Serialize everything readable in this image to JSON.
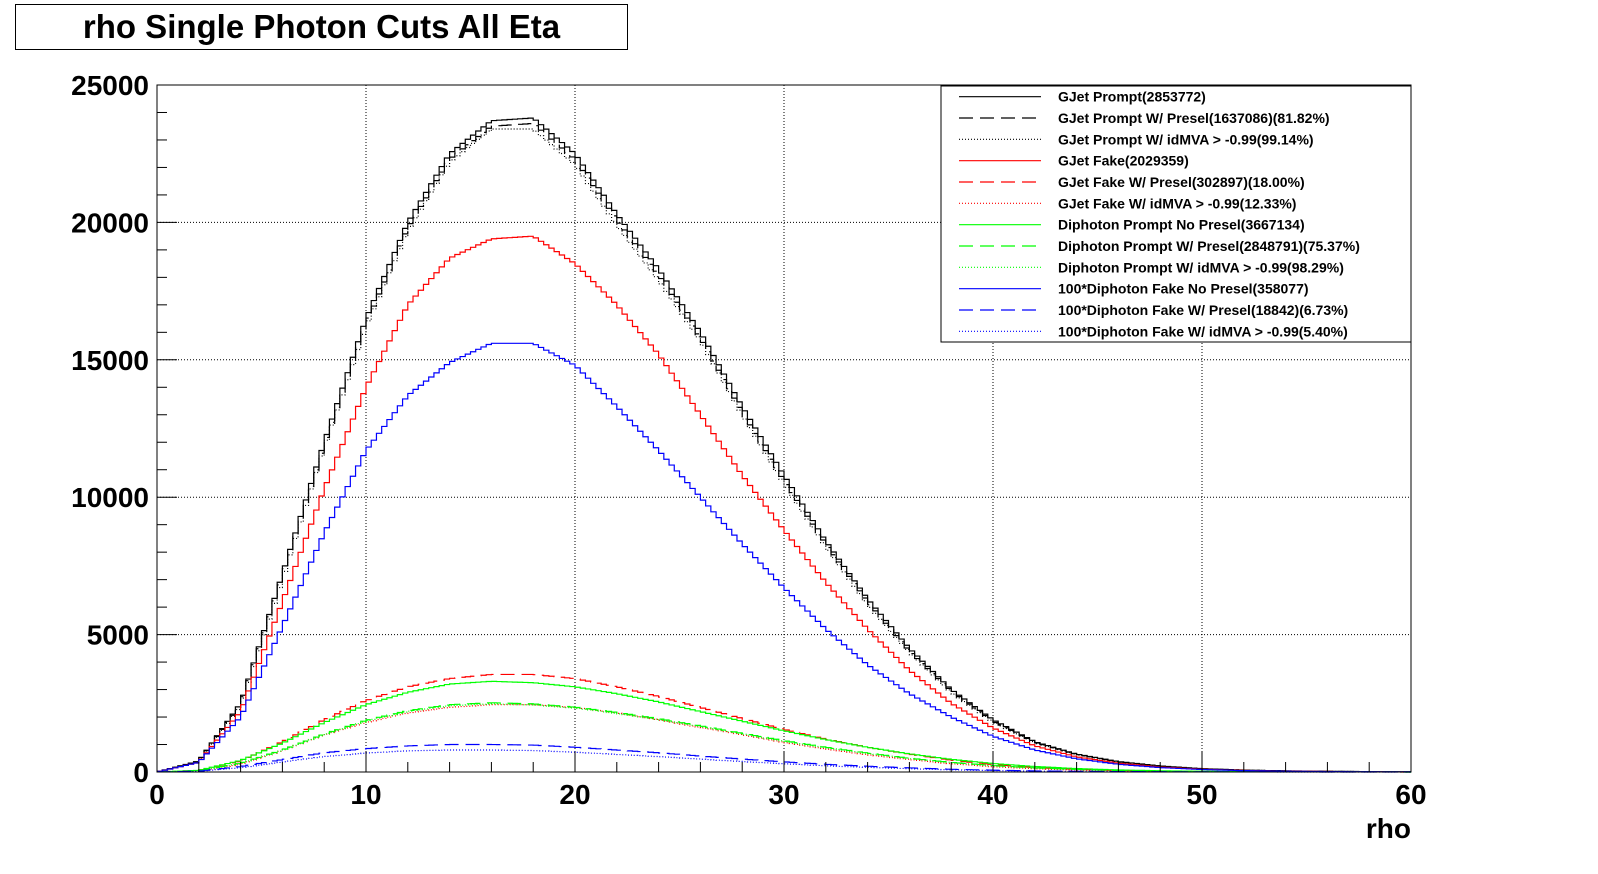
{
  "chart_data": {
    "type": "line",
    "title": "rho Single Photon Cuts All Eta",
    "xlabel": "rho",
    "ylabel": "",
    "xlim": [
      0,
      60
    ],
    "ylim": [
      0,
      25000
    ],
    "xticks": [
      0,
      10,
      20,
      30,
      40,
      50,
      60
    ],
    "yticks": [
      0,
      5000,
      10000,
      15000,
      20000,
      25000
    ],
    "xtick_labels": [
      "0",
      "10",
      "20",
      "30",
      "40",
      "50",
      "60"
    ],
    "ytick_labels": [
      "0",
      "5000",
      "10000",
      "15000",
      "20000",
      "25000"
    ],
    "grid": true,
    "legend_position": "top-right",
    "histogram_style": "step",
    "series": [
      {
        "name": "GJet Prompt(2853772)",
        "color": "#000000",
        "dash": "solid",
        "x": [
          0,
          2,
          4,
          6,
          8,
          10,
          12,
          14,
          16,
          18,
          20,
          22,
          24,
          26,
          28,
          30,
          32,
          34,
          36,
          38,
          40,
          42,
          44,
          46,
          48,
          50,
          52,
          54,
          56,
          58,
          60
        ],
        "values": [
          0,
          400,
          2500,
          7200,
          12000,
          16500,
          20000,
          22500,
          23700,
          23800,
          22500,
          20300,
          18300,
          16000,
          13300,
          10800,
          8400,
          6300,
          4500,
          3000,
          1900,
          1100,
          650,
          380,
          220,
          120,
          70,
          40,
          25,
          15,
          5
        ]
      },
      {
        "name": "GJet Prompt W/ Presel(1637086)(81.82%)",
        "color": "#000000",
        "dash": "long-dash",
        "x": [
          0,
          2,
          4,
          6,
          8,
          10,
          12,
          14,
          16,
          18,
          20,
          22,
          24,
          26,
          28,
          30,
          32,
          34,
          36,
          38,
          40,
          42,
          44,
          46,
          48,
          50,
          52,
          54,
          56,
          58,
          60
        ],
        "values": [
          0,
          390,
          2450,
          7100,
          11900,
          16300,
          19800,
          22300,
          23500,
          23600,
          22300,
          20100,
          18100,
          15800,
          13100,
          10600,
          8300,
          6200,
          4400,
          2950,
          1850,
          1080,
          640,
          370,
          215,
          118,
          68,
          39,
          24,
          14,
          5
        ]
      },
      {
        "name": "GJet Prompt W/ idMVA > -0.99(99.14%)",
        "color": "#000000",
        "dash": "dotted",
        "x": [
          0,
          2,
          4,
          6,
          8,
          10,
          12,
          14,
          16,
          18,
          20,
          22,
          24,
          26,
          28,
          30,
          32,
          34,
          36,
          38,
          40,
          42,
          44,
          46,
          48,
          50,
          52,
          54,
          56,
          58,
          60
        ],
        "values": [
          0,
          380,
          2400,
          7000,
          11800,
          16200,
          19700,
          22200,
          23400,
          23400,
          22100,
          19900,
          17900,
          15700,
          13000,
          10500,
          8200,
          6100,
          4350,
          2900,
          1820,
          1060,
          630,
          365,
          210,
          115,
          66,
          38,
          23,
          13,
          5
        ]
      },
      {
        "name": "GJet Fake(2029359)",
        "color": "#ff0000",
        "dash": "solid",
        "x": [
          0,
          2,
          4,
          6,
          8,
          10,
          12,
          14,
          16,
          18,
          20,
          22,
          24,
          26,
          28,
          30,
          32,
          34,
          36,
          38,
          40,
          42,
          44,
          46,
          48,
          50,
          52,
          54,
          56,
          58,
          60
        ],
        "values": [
          0,
          350,
          2200,
          6200,
          10300,
          14000,
          17000,
          18700,
          19400,
          19500,
          18500,
          17000,
          15200,
          13000,
          10800,
          8800,
          6900,
          5200,
          3700,
          2500,
          1600,
          950,
          550,
          320,
          180,
          100,
          55,
          30,
          18,
          10,
          4
        ]
      },
      {
        "name": "GJet Fake W/ Presel(302897)(18.00%)",
        "color": "#ff0000",
        "dash": "long-dash",
        "x": [
          0,
          2,
          4,
          6,
          8,
          10,
          12,
          14,
          16,
          18,
          20,
          22,
          24,
          26,
          28,
          30,
          32,
          34,
          36,
          38,
          40,
          42,
          44,
          46,
          48,
          50,
          52,
          54,
          56,
          58,
          60
        ],
        "values": [
          0,
          60,
          400,
          1100,
          1900,
          2600,
          3100,
          3400,
          3550,
          3550,
          3400,
          3100,
          2750,
          2350,
          1950,
          1550,
          1200,
          900,
          650,
          430,
          270,
          160,
          95,
          55,
          30,
          17,
          10,
          6,
          4,
          2,
          1
        ]
      },
      {
        "name": "GJet Fake W/ idMVA > -0.99(12.33%)",
        "color": "#ff0000",
        "dash": "dotted",
        "x": [
          0,
          2,
          4,
          6,
          8,
          10,
          12,
          14,
          16,
          18,
          20,
          22,
          24,
          26,
          28,
          30,
          32,
          34,
          36,
          38,
          40,
          42,
          44,
          46,
          48,
          50,
          52,
          54,
          56,
          58,
          60
        ],
        "values": [
          0,
          40,
          280,
          780,
          1350,
          1800,
          2150,
          2350,
          2450,
          2450,
          2350,
          2150,
          1900,
          1620,
          1350,
          1080,
          840,
          630,
          450,
          300,
          190,
          115,
          68,
          40,
          23,
          13,
          8,
          5,
          3,
          2,
          1
        ]
      },
      {
        "name": "Diphoton Prompt No Presel(3667134)",
        "color": "#00ff00",
        "dash": "solid",
        "x": [
          0,
          2,
          4,
          6,
          8,
          10,
          12,
          14,
          16,
          18,
          20,
          22,
          24,
          26,
          28,
          30,
          32,
          34,
          36,
          38,
          40,
          42,
          44,
          46,
          48,
          50,
          52,
          54,
          56,
          58,
          60
        ],
        "values": [
          0,
          60,
          420,
          1050,
          1800,
          2450,
          2900,
          3200,
          3300,
          3250,
          3100,
          2850,
          2550,
          2200,
          1850,
          1500,
          1180,
          900,
          660,
          460,
          310,
          200,
          125,
          75,
          45,
          26,
          15,
          9,
          5,
          3,
          1
        ]
      },
      {
        "name": "Diphoton Prompt W/ Presel(2848791)(75.37%)",
        "color": "#00ff00",
        "dash": "long-dash",
        "x": [
          0,
          2,
          4,
          6,
          8,
          10,
          12,
          14,
          16,
          18,
          20,
          22,
          24,
          26,
          28,
          30,
          32,
          34,
          36,
          38,
          40,
          42,
          44,
          46,
          48,
          50,
          52,
          54,
          56,
          58,
          60
        ],
        "values": [
          0,
          45,
          320,
          800,
          1380,
          1880,
          2230,
          2450,
          2520,
          2480,
          2360,
          2170,
          1940,
          1680,
          1410,
          1140,
          900,
          690,
          500,
          350,
          235,
          150,
          95,
          57,
          34,
          20,
          12,
          7,
          4,
          2,
          1
        ]
      },
      {
        "name": "Diphoton Prompt W/ idMVA > -0.99(98.29%)",
        "color": "#00ff00",
        "dash": "dotted",
        "x": [
          0,
          2,
          4,
          6,
          8,
          10,
          12,
          14,
          16,
          18,
          20,
          22,
          24,
          26,
          28,
          30,
          32,
          34,
          36,
          38,
          40,
          42,
          44,
          46,
          48,
          50,
          52,
          54,
          56,
          58,
          60
        ],
        "values": [
          0,
          44,
          315,
          790,
          1360,
          1850,
          2200,
          2410,
          2480,
          2440,
          2320,
          2130,
          1910,
          1650,
          1390,
          1120,
          885,
          680,
          490,
          345,
          230,
          148,
          93,
          56,
          33,
          19,
          11,
          7,
          4,
          2,
          1
        ]
      },
      {
        "name": "100*Diphoton Fake No Presel(358077)",
        "color": "#0000ff",
        "dash": "solid",
        "x": [
          0,
          2,
          4,
          6,
          8,
          10,
          12,
          14,
          16,
          18,
          20,
          22,
          24,
          26,
          28,
          30,
          32,
          34,
          36,
          38,
          40,
          42,
          44,
          46,
          48,
          50,
          52,
          54,
          56,
          58,
          60
        ],
        "values": [
          0,
          350,
          2000,
          5300,
          8700,
          11700,
          13700,
          14900,
          15600,
          15600,
          14800,
          13300,
          11700,
          10000,
          8300,
          6700,
          5200,
          3900,
          2850,
          2000,
          1300,
          800,
          480,
          280,
          160,
          90,
          50,
          28,
          16,
          9,
          3
        ]
      },
      {
        "name": "100*Diphoton Fake W/ Presel(18842)(6.73%)",
        "color": "#0000ff",
        "dash": "long-dash",
        "x": [
          0,
          2,
          4,
          6,
          8,
          10,
          12,
          14,
          16,
          18,
          20,
          22,
          24,
          26,
          28,
          30,
          32,
          34,
          36,
          38,
          40,
          42,
          44,
          46,
          48,
          50,
          52,
          54,
          56,
          58,
          60
        ],
        "values": [
          0,
          30,
          200,
          450,
          700,
          850,
          950,
          1000,
          1000,
          980,
          900,
          800,
          700,
          580,
          470,
          370,
          280,
          210,
          150,
          100,
          65,
          40,
          25,
          15,
          9,
          5,
          3,
          2,
          1,
          1,
          0
        ]
      },
      {
        "name": "100*Diphoton Fake W/ idMVA > -0.99(5.40%)",
        "color": "#0000ff",
        "dash": "dotted",
        "x": [
          0,
          2,
          4,
          6,
          8,
          10,
          12,
          14,
          16,
          18,
          20,
          22,
          24,
          26,
          28,
          30,
          32,
          34,
          36,
          38,
          40,
          42,
          44,
          46,
          48,
          50,
          52,
          54,
          56,
          58,
          60
        ],
        "values": [
          0,
          25,
          160,
          360,
          560,
          690,
          770,
          800,
          800,
          780,
          720,
          640,
          560,
          470,
          380,
          300,
          225,
          170,
          120,
          80,
          52,
          32,
          20,
          12,
          7,
          4,
          2,
          1,
          1,
          0,
          0
        ]
      }
    ]
  }
}
